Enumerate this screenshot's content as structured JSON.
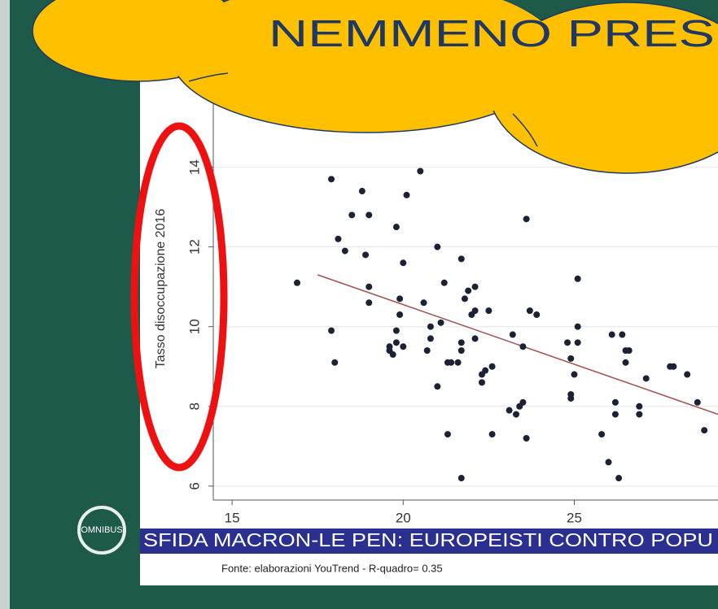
{
  "callout": "NEMMENO PRES",
  "banner": "SFIDA MACRON-LE PEN: EUROPEISTI CONTRO POPU",
  "source": "Fonte: elaborazioni YouTrend - R-quadro= 0.35",
  "logo": "OMNIBUS",
  "chart_data": {
    "type": "scatter",
    "ylabel": "Tasso disoccupazione 2016",
    "x": [
      16.9,
      17.9,
      18.0,
      17.9,
      18.1,
      18.5,
      18.3,
      18.8,
      18.9,
      19.0,
      19.0,
      19.0,
      19.6,
      19.6,
      19.7,
      19.8,
      19.8,
      19.8,
      19.9,
      19.9,
      20.0,
      20.0,
      20.1,
      20.5,
      20.6,
      20.7,
      20.8,
      20.8,
      21.0,
      21.0,
      21.1,
      21.2,
      21.3,
      21.3,
      21.4,
      21.6,
      21.7,
      21.7,
      21.7,
      21.7,
      21.8,
      21.9,
      22.0,
      22.1,
      22.1,
      22.1,
      22.3,
      22.3,
      22.4,
      22.5,
      22.6,
      22.6,
      23.2,
      23.1,
      23.3,
      23.4,
      23.5,
      23.5,
      23.6,
      23.6,
      23.7,
      23.9,
      24.8,
      24.9,
      24.9,
      24.9,
      25.1,
      25.1,
      25.0,
      25.1,
      25.8,
      26.0,
      26.1,
      26.2,
      26.2,
      26.3,
      26.4,
      26.5,
      26.5,
      26.6,
      26.9,
      26.9,
      27.1,
      27.8,
      27.9,
      28.3,
      28.6,
      28.8
    ],
    "values": [
      11.1,
      9.9,
      9.1,
      13.7,
      12.2,
      12.8,
      11.9,
      13.4,
      11.8,
      12.8,
      11.0,
      10.6,
      9.5,
      9.4,
      9.3,
      9.6,
      9.9,
      12.5,
      10.7,
      10.3,
      9.5,
      11.6,
      13.3,
      13.9,
      10.6,
      9.4,
      9.7,
      10.0,
      12.0,
      8.5,
      10.1,
      11.1,
      7.3,
      9.1,
      9.1,
      9.1,
      9.6,
      9.4,
      6.2,
      11.7,
      10.7,
      10.9,
      10.3,
      10.4,
      9.7,
      11.0,
      8.6,
      8.8,
      8.9,
      10.4,
      9.0,
      7.3,
      9.8,
      7.9,
      7.8,
      8.0,
      8.1,
      9.5,
      12.7,
      7.2,
      10.4,
      10.3,
      9.6,
      8.3,
      9.2,
      8.2,
      11.2,
      10.0,
      8.8,
      9.6,
      7.3,
      6.6,
      9.8,
      7.8,
      8.1,
      6.2,
      9.8,
      9.1,
      9.4,
      9.4,
      8.0,
      7.8,
      8.7,
      9.0,
      9.0,
      8.8,
      8.1,
      7.4
    ],
    "color": "#1c2236",
    "fit": {
      "x": [
        17.5,
        29.2
      ],
      "values": [
        11.3,
        7.8
      ],
      "color": "#a0524f"
    },
    "xlim": [
      14.45,
      29.2
    ],
    "ylim": [
      5.65,
      15.95
    ],
    "xticks": [
      15,
      20,
      25
    ],
    "yticks": [
      6,
      8,
      10,
      12,
      14
    ],
    "grid": true
  }
}
